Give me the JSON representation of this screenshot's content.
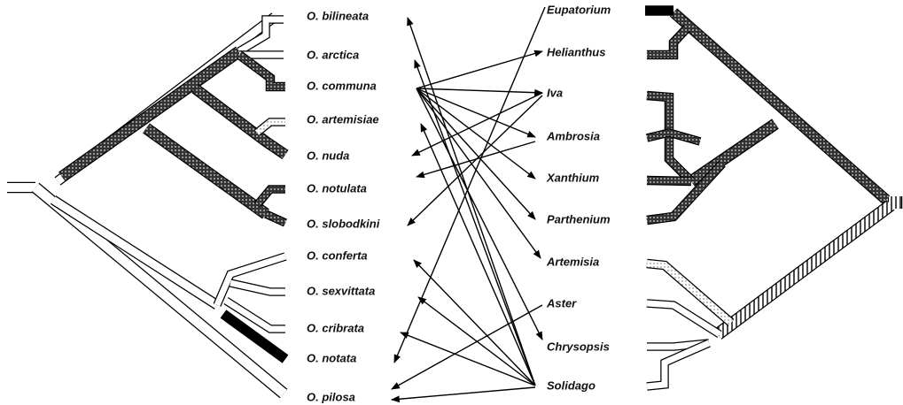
{
  "left_taxa": [
    "O. bilineata",
    "O. arctica",
    "O. communa",
    "O. artemisiae",
    "O. nuda",
    "O. notulata",
    "O. slobodkini",
    "O. conferta",
    "O. sexvittata",
    "O. cribrata",
    "O. notata",
    "O. pilosa"
  ],
  "right_taxa": [
    "Eupatorium",
    "Helianthus",
    "Iva",
    "Ambrosia",
    "Xanthium",
    "Parthenium",
    "Artemisia",
    "Aster",
    "Chrysopsis",
    "Solidago"
  ]
}
